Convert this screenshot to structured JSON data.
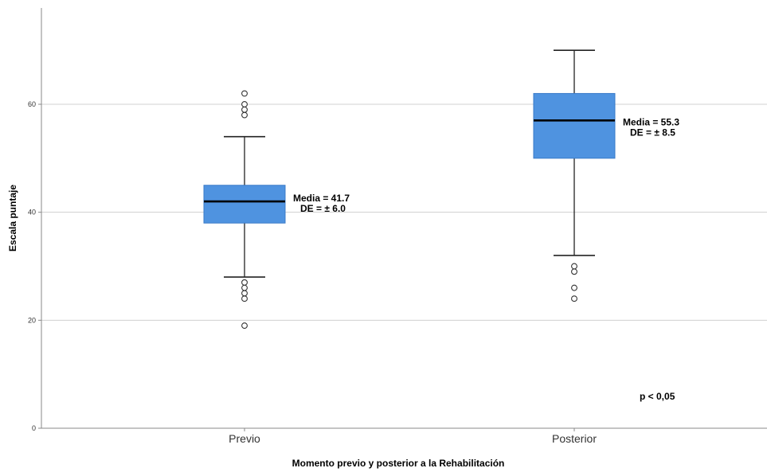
{
  "chart_data": {
    "type": "boxplot",
    "xlabel": "Momento previo y posterior a la Rehabilitación",
    "ylabel": "Escala puntaje",
    "ylim": [
      0,
      75
    ],
    "yticks": [
      "0",
      "20",
      "40",
      "60"
    ],
    "grid": true,
    "box_color": "#4f93e0",
    "categories": [
      "Previo",
      "Posterior"
    ],
    "boxes": [
      {
        "category": "Previo",
        "whisker_low": 28,
        "q1": 38,
        "median": 42,
        "q3": 45,
        "whisker_high": 54,
        "outliers": [
          19,
          24,
          25,
          26,
          27,
          58,
          59,
          60,
          62
        ],
        "annotation": [
          "Media = 41.7",
          "DE = ± 6.0"
        ]
      },
      {
        "category": "Posterior",
        "whisker_low": 32,
        "q1": 50,
        "median": 57,
        "q3": 62,
        "whisker_high": 70,
        "outliers": [
          24,
          26,
          29,
          30
        ],
        "annotation": [
          "Media = 55.3",
          "DE = ± 8.5"
        ]
      }
    ],
    "note": "p < 0,05"
  }
}
